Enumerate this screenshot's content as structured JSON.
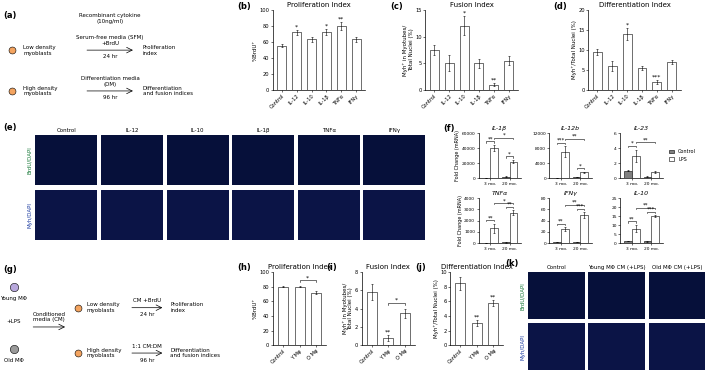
{
  "chart_data": [
    {
      "panel": "(b)",
      "type": "bar",
      "title": "Proliferation Index",
      "ylabel": "%BrdU⁺",
      "categories": [
        "Control",
        "IL-12",
        "IL-10",
        "IL-1β",
        "TNFα",
        "IFNγ"
      ],
      "values": [
        55,
        72,
        63,
        72,
        80,
        63
      ],
      "errors": [
        2,
        3,
        3,
        4,
        5,
        3
      ],
      "color": "#ffffff",
      "ylim": [
        0,
        100
      ],
      "yticks": [
        0,
        20,
        40,
        60,
        80,
        100
      ],
      "annotations": [
        {
          "category": "IL-12",
          "text": "*"
        },
        {
          "category": "IL-1β",
          "text": "*"
        },
        {
          "category": "TNFα",
          "text": "**"
        }
      ]
    },
    {
      "panel": "(c)",
      "type": "bar",
      "title": "Fusion Index",
      "ylabel": "Myh⁺ in Myotubes/\nTotal Nuclei (%)",
      "categories": [
        "Control",
        "IL-12",
        "IL-10",
        "IL-1β",
        "TNFα",
        "IFNγ"
      ],
      "values": [
        7.5,
        5,
        12,
        5,
        1,
        5.5
      ],
      "errors": [
        1,
        1.5,
        1.8,
        0.8,
        0.3,
        0.8
      ],
      "color": "#ffffff",
      "ylim": [
        0,
        15
      ],
      "yticks": [
        0,
        5,
        10,
        15
      ],
      "annotations": [
        {
          "category": "IL-10",
          "text": "*"
        },
        {
          "category": "TNFα",
          "text": "**"
        }
      ]
    },
    {
      "panel": "(d)",
      "type": "bar",
      "title": "Differentiation Index",
      "ylabel": "Myh⁺/Total Nuclei (%)",
      "categories": [
        "Control",
        "IL-12",
        "IL-10",
        "IL-1β",
        "TNFα",
        "IFNγ"
      ],
      "values": [
        9.5,
        6,
        14,
        5.5,
        2,
        7
      ],
      "errors": [
        0.8,
        1.2,
        1.5,
        0.6,
        0.5,
        0.5
      ],
      "color": "#ffffff",
      "ylim": [
        0,
        20
      ],
      "yticks": [
        0,
        5,
        10,
        15,
        20
      ],
      "annotations": [
        {
          "category": "IL-10",
          "text": "*"
        },
        {
          "category": "TNFα",
          "text": "***"
        }
      ]
    },
    {
      "panel": "(f)",
      "type": "bar",
      "title": "IL-1β",
      "ylabel": "Fold Change (mRNA)",
      "categories": [
        "3 mo.",
        "20 mo."
      ],
      "series": [
        {
          "name": "Control",
          "color": "#808080",
          "values": [
            1,
            2000
          ],
          "errors": [
            0,
            300
          ]
        },
        {
          "name": "LPS",
          "color": "#ffffff",
          "values": [
            40000,
            22000
          ],
          "errors": [
            4000,
            2000
          ]
        }
      ],
      "ylim": [
        0,
        60000
      ],
      "yticks": [
        0,
        20000,
        40000,
        60000
      ],
      "annotations": [
        {
          "from": {
            "category": "3 mo.",
            "series": "Control"
          },
          "to": {
            "category": "3 mo.",
            "series": "LPS"
          },
          "text": "**"
        },
        {
          "from": {
            "category": "20 mo.",
            "series": "Control"
          },
          "to": {
            "category": "20 mo.",
            "series": "LPS"
          },
          "text": "*"
        },
        {
          "from": {
            "category": "3 mo.",
            "series": "LPS"
          },
          "to": {
            "category": "20 mo.",
            "series": "LPS"
          },
          "text": "*"
        }
      ]
    },
    {
      "type": "bar",
      "title": "IL-12b",
      "categories": [
        "3 mo.",
        "20 mo."
      ],
      "series": [
        {
          "name": "Control",
          "color": "#808080",
          "values": [
            1,
            300
          ],
          "errors": [
            0,
            50
          ]
        },
        {
          "name": "LPS",
          "color": "#ffffff",
          "values": [
            7000,
            1500
          ],
          "errors": [
            1500,
            200
          ]
        }
      ],
      "ylim": [
        0,
        12000
      ],
      "yticks": [
        0,
        4000,
        8000,
        12000
      ],
      "annotations": [
        {
          "from": {
            "category": "3 mo.",
            "series": "Control"
          },
          "to": {
            "category": "3 mo.",
            "series": "LPS"
          },
          "text": "***"
        },
        {
          "from": {
            "category": "20 mo.",
            "series": "Control"
          },
          "to": {
            "category": "20 mo.",
            "series": "LPS"
          },
          "text": "*"
        },
        {
          "from": {
            "category": "3 mo.",
            "series": "LPS"
          },
          "to": {
            "category": "20 mo.",
            "series": "LPS"
          },
          "text": "**"
        }
      ]
    },
    {
      "type": "bar",
      "title": "IL-23",
      "legend": "right",
      "categories": [
        "3 mo.",
        "20 mo."
      ],
      "series": [
        {
          "name": "Control",
          "color": "#808080",
          "values": [
            1,
            0.2
          ],
          "errors": [
            0.1,
            0.05
          ]
        },
        {
          "name": "LPS",
          "color": "#ffffff",
          "values": [
            3,
            0.8
          ],
          "errors": [
            0.8,
            0.1
          ]
        }
      ],
      "ylim": [
        0,
        6
      ],
      "yticks": [
        0,
        2,
        4,
        6
      ],
      "annotations": [
        {
          "from": {
            "category": "3 mo.",
            "series": "Control"
          },
          "to": {
            "category": "3 mo.",
            "series": "LPS"
          },
          "text": "*"
        },
        {
          "from": {
            "category": "3 mo.",
            "series": "LPS"
          },
          "to": {
            "category": "20 mo.",
            "series": "LPS"
          },
          "text": "**"
        }
      ]
    },
    {
      "type": "bar",
      "title": "TNFα",
      "ylabel": "Fold Change (mRNA)",
      "categories": [
        "3 mo.",
        "20 mo."
      ],
      "series": [
        {
          "name": "Control",
          "color": "#808080",
          "values": [
            1,
            50
          ],
          "errors": [
            0,
            10
          ]
        },
        {
          "name": "LPS",
          "color": "#ffffff",
          "values": [
            1300,
            2700
          ],
          "errors": [
            400,
            200
          ]
        }
      ],
      "ylim": [
        0,
        4000
      ],
      "yticks": [
        0,
        1000,
        2000,
        3000,
        4000
      ],
      "annotations": [
        {
          "from": {
            "category": "3 mo.",
            "series": "Control"
          },
          "to": {
            "category": "3 mo.",
            "series": "LPS"
          },
          "text": "**"
        },
        {
          "from": {
            "category": "20 mo.",
            "series": "Control"
          },
          "to": {
            "category": "20 mo.",
            "series": "LPS"
          },
          "text": "**"
        },
        {
          "from": {
            "category": "3 mo.",
            "series": "LPS"
          },
          "to": {
            "category": "20 mo.",
            "series": "LPS"
          },
          "text": "*"
        }
      ]
    },
    {
      "type": "bar",
      "title": "IFNγ",
      "categories": [
        "3 mo.",
        "20 mo."
      ],
      "series": [
        {
          "name": "Control",
          "color": "#808080",
          "values": [
            1,
            2
          ],
          "errors": [
            0,
            0.5
          ]
        },
        {
          "name": "LPS",
          "color": "#ffffff",
          "values": [
            25,
            50
          ],
          "errors": [
            3,
            5
          ]
        }
      ],
      "ylim": [
        0,
        80
      ],
      "yticks": [
        0,
        20,
        40,
        60,
        80
      ],
      "annotations": [
        {
          "from": {
            "category": "3 mo.",
            "series": "Control"
          },
          "to": {
            "category": "3 mo.",
            "series": "LPS"
          },
          "text": "**"
        },
        {
          "from": {
            "category": "20 mo.",
            "series": "Control"
          },
          "to": {
            "category": "20 mo.",
            "series": "LPS"
          },
          "text": "***"
        },
        {
          "from": {
            "category": "3 mo.",
            "series": "LPS"
          },
          "to": {
            "category": "20 mo.",
            "series": "LPS"
          },
          "text": "**"
        }
      ]
    },
    {
      "type": "bar",
      "title": "IL-10",
      "categories": [
        "3 mo.",
        "20 mo."
      ],
      "series": [
        {
          "name": "Control",
          "color": "#808080",
          "values": [
            1,
            1
          ],
          "errors": [
            0,
            0.2
          ]
        },
        {
          "name": "LPS",
          "color": "#ffffff",
          "values": [
            8,
            15
          ],
          "errors": [
            2,
            0.5
          ]
        }
      ],
      "ylim": [
        0,
        25
      ],
      "yticks": [
        0,
        5,
        10,
        15,
        20,
        25
      ],
      "annotations": [
        {
          "from": {
            "category": "3 mo.",
            "series": "Control"
          },
          "to": {
            "category": "3 mo.",
            "series": "LPS"
          },
          "text": "**"
        },
        {
          "from": {
            "category": "20 mo.",
            "series": "Control"
          },
          "to": {
            "category": "20 mo.",
            "series": "LPS"
          },
          "text": "***"
        },
        {
          "from": {
            "category": "3 mo.",
            "series": "LPS"
          },
          "to": {
            "category": "20 mo.",
            "series": "LPS"
          },
          "text": "**"
        }
      ]
    },
    {
      "panel": "(h)",
      "type": "bar",
      "title": "Proliferation Index",
      "ylabel": "%BrdU⁺",
      "categories": [
        "Control",
        "Y Mφ",
        "O Mφ"
      ],
      "values": [
        80,
        80,
        72
      ],
      "errors": [
        1,
        1,
        2.5
      ],
      "color": "#ffffff",
      "ylim": [
        0,
        100
      ],
      "yticks": [
        0,
        20,
        40,
        60,
        80,
        100
      ],
      "annotations": [
        {
          "from": {
            "category": "Y Mφ"
          },
          "to": {
            "category": "O Mφ"
          },
          "text": "*"
        }
      ]
    },
    {
      "panel": "(i)",
      "type": "bar",
      "title": "Fusion Index",
      "ylabel": "Myh⁺ in Myotubes/\nTotal Nuclei (%)",
      "categories": [
        "Control",
        "Y Mφ",
        "O Mφ"
      ],
      "values": [
        5.8,
        0.8,
        3.5
      ],
      "errors": [
        0.9,
        0.3,
        0.5
      ],
      "color": "#ffffff",
      "ylim": [
        0,
        8
      ],
      "yticks": [
        0,
        2,
        4,
        6,
        8
      ],
      "annotations": [
        {
          "category": "Y Mφ",
          "text": "**"
        },
        {
          "from": {
            "category": "Y Mφ"
          },
          "to": {
            "category": "O Mφ"
          },
          "text": "*"
        }
      ]
    },
    {
      "panel": "(j)",
      "type": "bar",
      "title": "Differentiation Index",
      "ylabel": "Myh⁺/Total Nuclei (%)",
      "categories": [
        "Control",
        "Y Mφ",
        "O Mφ"
      ],
      "values": [
        8.5,
        3,
        5.8
      ],
      "errors": [
        0.9,
        0.4,
        0.4
      ],
      "color": "#ffffff",
      "ylim": [
        0,
        10
      ],
      "yticks": [
        0,
        2,
        4,
        6,
        8,
        10
      ],
      "annotations": [
        {
          "category": "Y Mφ",
          "text": "**"
        },
        {
          "category": "O Mφ",
          "text": "**"
        }
      ]
    }
  ],
  "schematics": [
    {
      "panel": "(a)",
      "top_label": "Recombinant cytokine\n(10ng/ml)",
      "rows": [
        {
          "cells": "Low density\nmyoblasts",
          "step": "Serum-free media (SFM)\n+BrdU",
          "time": "24 hr",
          "result": "Proliferation\nindex"
        },
        {
          "cells": "High density\nmyoblasts",
          "step": "Differentiation media\n(DM)",
          "time": "96 hr",
          "result": "Differentiation\nand fusion indices"
        }
      ]
    },
    {
      "panel": "(g)",
      "top_label": "Conditioned\nmedia (CM)",
      "treatment": "+LPS",
      "sources": [
        "Young MΦ",
        "Old MΦ"
      ],
      "rows": [
        {
          "cells": "Low density\nmyoblasts",
          "step": "CM +BrdU",
          "time": "24 hr",
          "result": "Proliferation\nindex"
        },
        {
          "cells": "High density\nmyoblasts",
          "step": "1:1 CM:DM",
          "time": "96 hr",
          "result": "Differentiation\nand fusion indices"
        }
      ]
    }
  ],
  "images": [
    {
      "panel": "(e)",
      "columns": [
        "Control",
        "IL-12",
        "IL-10",
        "IL-1β",
        "TNFα",
        "IFNγ"
      ],
      "rows": [
        "BrdU/DAPI",
        "Myh/DAPI"
      ]
    },
    {
      "panel": "(k)",
      "columns": [
        "Control",
        "Young MΦ CM (+LPS)",
        "Old MΦ CM (+LPS)"
      ],
      "rows": [
        "BrdU/DAPI",
        "Myh/DAPI"
      ]
    }
  ]
}
